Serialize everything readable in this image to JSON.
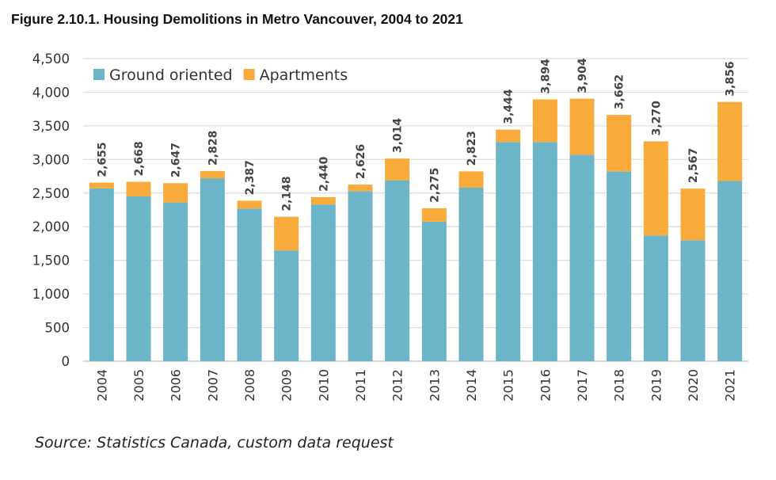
{
  "chart_data": {
    "type": "bar",
    "stacked": true,
    "title": "Figure 2.10.1. Housing Demolitions in Metro Vancouver, 2004 to 2021",
    "xlabel": "",
    "ylabel": "",
    "ylim": [
      0,
      4500
    ],
    "yticks": [
      "0",
      "500",
      "1,000",
      "1,500",
      "2,000",
      "2,500",
      "3,000",
      "3,500",
      "4,000",
      "4,500"
    ],
    "grid": true,
    "legend_position": "top-left",
    "categories": [
      "2004",
      "2005",
      "2006",
      "2007",
      "2008",
      "2009",
      "2010",
      "2011",
      "2012",
      "2013",
      "2014",
      "2015",
      "2016",
      "2017",
      "2018",
      "2019",
      "2020",
      "2021"
    ],
    "series": [
      {
        "name": "Ground oriented",
        "color": "#6cb4c8",
        "values": [
          2570,
          2450,
          2360,
          2720,
          2270,
          1645,
          2330,
          2530,
          2690,
          2075,
          2580,
          3260,
          3260,
          3070,
          2820,
          1870,
          1800,
          2680
        ]
      },
      {
        "name": "Apartments",
        "color": "#f8ab3b",
        "values": [
          85,
          218,
          287,
          108,
          117,
          503,
          110,
          96,
          324,
          200,
          243,
          184,
          634,
          834,
          842,
          1400,
          767,
          1176
        ]
      }
    ],
    "totals": [
      2655,
      2668,
      2647,
      2828,
      2387,
      2148,
      2440,
      2626,
      3014,
      2275,
      2823,
      3444,
      3894,
      3904,
      3662,
      3270,
      2567,
      3856
    ],
    "total_labels": [
      "2,655",
      "2,668",
      "2,647",
      "2,828",
      "2,387",
      "2,148",
      "2,440",
      "2,626",
      "3,014",
      "2,275",
      "2,823",
      "3,444",
      "3,894",
      "3,904",
      "3,662",
      "3,270",
      "2,567",
      "3,856"
    ]
  },
  "source": "Source: Statistics Canada, custom data request"
}
